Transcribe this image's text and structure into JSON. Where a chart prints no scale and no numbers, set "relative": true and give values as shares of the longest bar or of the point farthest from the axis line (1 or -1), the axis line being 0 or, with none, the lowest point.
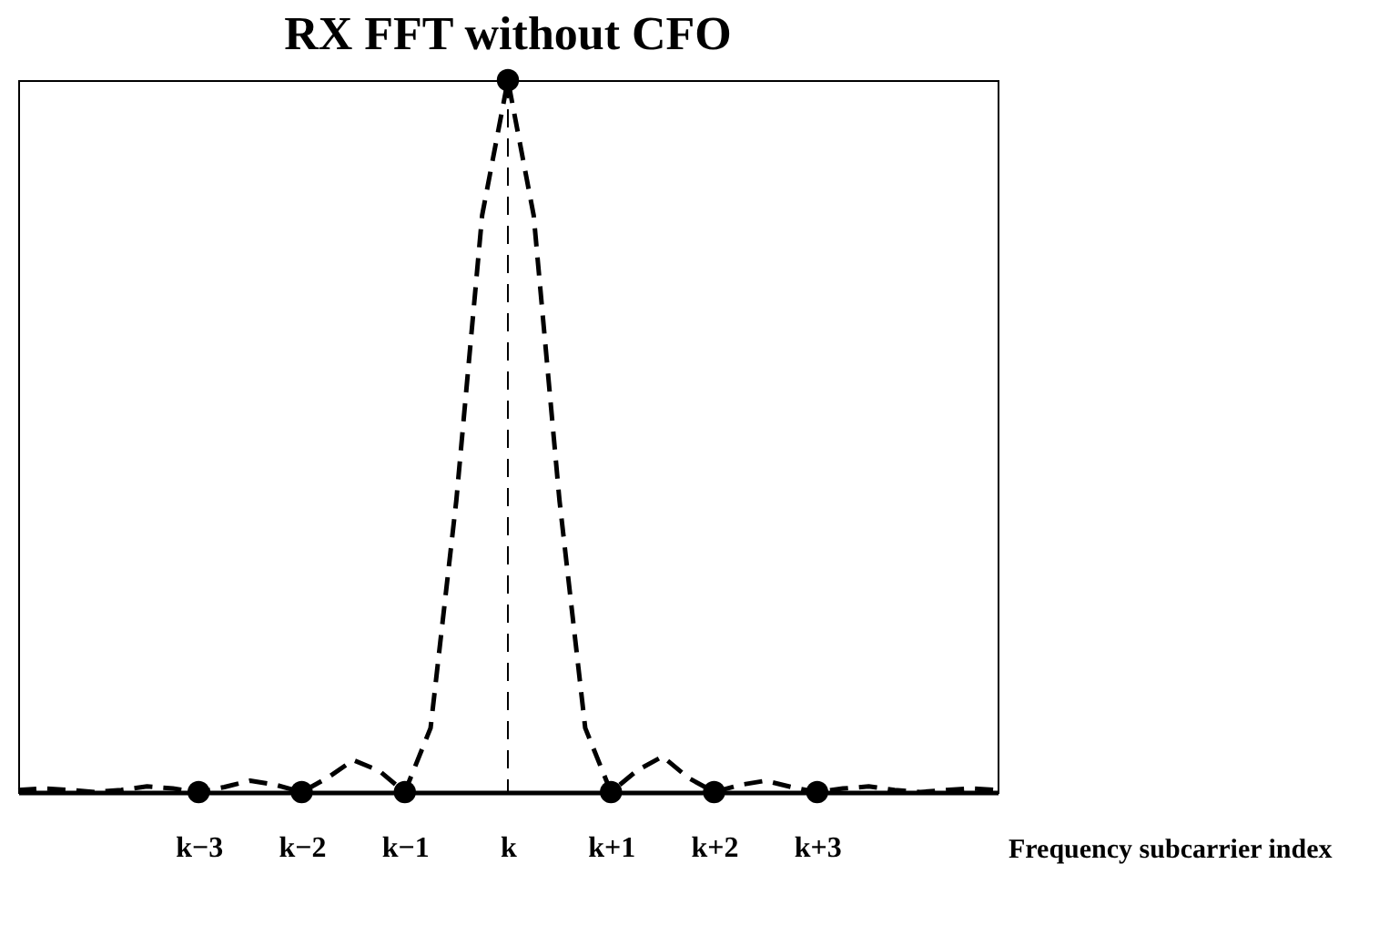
{
  "chart_data": {
    "type": "line",
    "title": "RX FFT without CFO",
    "xlabel": "Frequency subcarrier index",
    "relative": true,
    "categories": [
      null,
      null,
      null,
      null,
      null,
      null,
      null,
      "k−3",
      null,
      null,
      null,
      "k−2",
      null,
      null,
      null,
      "k−1",
      null,
      null,
      null,
      "k",
      null,
      null,
      null,
      "k+1",
      null,
      null,
      null,
      "k+2",
      null,
      null,
      null,
      "k+3",
      null,
      null,
      null,
      null,
      null,
      null,
      null
    ],
    "ref_lines": [
      {
        "axis": "x",
        "value": "k",
        "line_style": "dashed",
        "color": "#000000"
      }
    ],
    "series": [
      {
        "color": "#000000",
        "line_style": "dashed",
        "values": [
          0.003,
          0.005,
          0.003,
          0,
          0.003,
          0.008,
          0.005,
          0,
          0.007,
          0.016,
          0.01,
          0,
          0.02,
          0.045,
          0.03,
          0,
          0.09,
          0.41,
          0.81,
          1,
          0.81,
          0.41,
          0.09,
          0,
          0.03,
          0.05,
          0.02,
          0,
          0.01,
          0.016,
          0.007,
          0,
          0.005,
          0.008,
          0.003,
          0,
          0.003,
          0.005,
          0.003
        ]
      },
      {
        "type": "scatter",
        "color": "#000000",
        "marker": "circle",
        "values": [
          null,
          null,
          null,
          null,
          null,
          null,
          null,
          0,
          null,
          null,
          null,
          0,
          null,
          null,
          null,
          0,
          null,
          null,
          null,
          1,
          null,
          null,
          null,
          0,
          null,
          null,
          null,
          0,
          null,
          null,
          null,
          0,
          null,
          null,
          null,
          null,
          null,
          null,
          null
        ]
      }
    ]
  }
}
